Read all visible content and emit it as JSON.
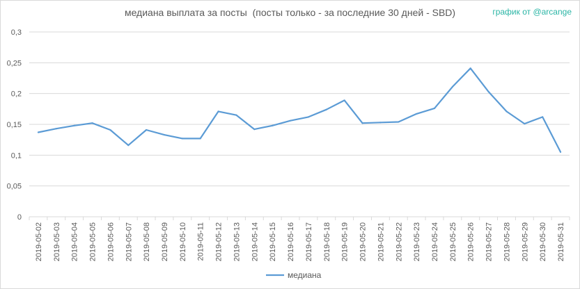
{
  "chart_data": {
    "type": "line",
    "title": "медиана выплата за посты  (посты только - за последние 30 дней - SBD)",
    "credit": "график от @arcange",
    "xlabel": "",
    "ylabel": "",
    "ylim": [
      0,
      0.3
    ],
    "yticks": [
      "0",
      "0,05",
      "0,1",
      "0,15",
      "0,2",
      "0,25",
      "0,3"
    ],
    "ytick_values": [
      0,
      0.05,
      0.1,
      0.15,
      0.2,
      0.25,
      0.3
    ],
    "grid": true,
    "legend_position": "bottom",
    "color": "#5b9bd5",
    "categories": [
      "2019-05-02",
      "2019-05-03",
      "2019-05-04",
      "2019-05-05",
      "2019-05-06",
      "2019-05-07",
      "2019-05-08",
      "2019-05-09",
      "2019-05-10",
      "2019-05-11",
      "2019-05-12",
      "2019-05-13",
      "2019-05-14",
      "2019-05-15",
      "2019-05-16",
      "2019-05-17",
      "2019-05-18",
      "2019-05-19",
      "2019-05-20",
      "2019-05-21",
      "2019-05-22",
      "2019-05-23",
      "2019-05-24",
      "2019-05-25",
      "2019-05-26",
      "2019-05-27",
      "2019-05-28",
      "2019-05-29",
      "2019-05-30",
      "2019-05-31"
    ],
    "series": [
      {
        "name": "медиана",
        "values": [
          0.137,
          0.143,
          0.148,
          0.152,
          0.141,
          0.116,
          0.141,
          0.133,
          0.127,
          0.127,
          0.171,
          0.165,
          0.142,
          0.148,
          0.156,
          0.162,
          0.174,
          0.189,
          0.152,
          0.153,
          0.154,
          0.167,
          0.176,
          0.211,
          0.241,
          0.203,
          0.171,
          0.151,
          0.162,
          0.105
        ]
      }
    ]
  }
}
